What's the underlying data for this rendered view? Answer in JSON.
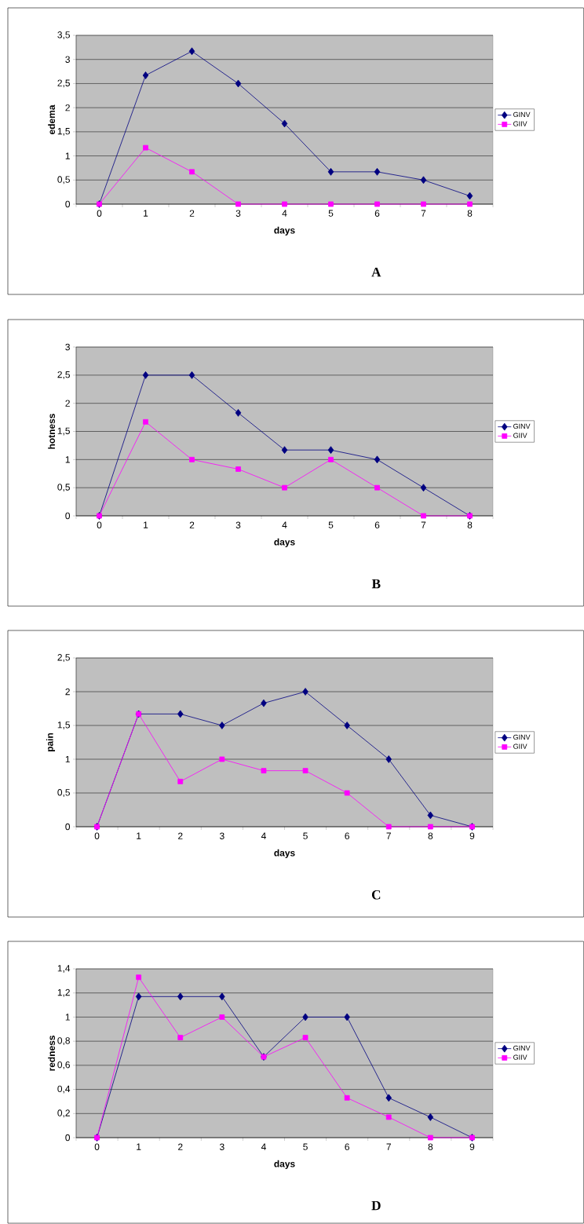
{
  "chart_data": [
    {
      "type": "line",
      "ylabel": "edema",
      "xlabel": "days",
      "annotations": [
        "A"
      ],
      "categories": [
        "0",
        "1",
        "2",
        "3",
        "4",
        "5",
        "6",
        "7",
        "8"
      ],
      "ylim": [
        0,
        3.5
      ],
      "yticks": [
        0,
        {
          "value": 0.5,
          "label": "0,5"
        },
        1,
        {
          "value": 1.5,
          "label": "1,5"
        },
        2,
        {
          "value": 2.5,
          "label": "2,5"
        },
        3,
        {
          "value": 3.5,
          "label": "3,5"
        }
      ],
      "grid": "y",
      "legend": "right",
      "series": [
        {
          "name": "GINV",
          "color": "#000080",
          "marker": "diamond",
          "values": [
            0,
            2.67,
            3.17,
            2.5,
            1.67,
            0.67,
            0.67,
            0.5,
            0.17
          ]
        },
        {
          "name": "GIIV",
          "color": "#ff00ff",
          "marker": "square",
          "values": [
            0,
            1.17,
            0.67,
            0,
            0,
            0,
            0,
            0,
            0
          ]
        }
      ]
    },
    {
      "type": "line",
      "ylabel": "hotness",
      "xlabel": "days",
      "annotations": [
        "B"
      ],
      "categories": [
        "0",
        "1",
        "2",
        "3",
        "4",
        "5",
        "6",
        "7",
        "8"
      ],
      "ylim": [
        0,
        3
      ],
      "yticks": [
        0,
        {
          "value": 0.5,
          "label": "0,5"
        },
        1,
        {
          "value": 1.5,
          "label": "1,5"
        },
        2,
        {
          "value": 2.5,
          "label": "2,5"
        },
        3
      ],
      "grid": "y",
      "legend": "right",
      "series": [
        {
          "name": "GINV",
          "color": "#000080",
          "marker": "diamond",
          "values": [
            0,
            2.5,
            2.5,
            1.83,
            1.17,
            1.17,
            1.0,
            0.5,
            0
          ]
        },
        {
          "name": "GIIV",
          "color": "#ff00ff",
          "marker": "square",
          "values": [
            0,
            1.67,
            1.0,
            0.83,
            0.5,
            1.0,
            0.5,
            0,
            0
          ]
        }
      ]
    },
    {
      "type": "line",
      "ylabel": "pain",
      "xlabel": "days",
      "annotations": [
        "C"
      ],
      "categories": [
        "0",
        "1",
        "2",
        "3",
        "4",
        "5",
        "6",
        "7",
        "8",
        "9"
      ],
      "ylim": [
        0,
        2.5
      ],
      "yticks": [
        0,
        {
          "value": 0.5,
          "label": "0,5"
        },
        1,
        {
          "value": 1.5,
          "label": "1,5"
        },
        2,
        {
          "value": 2.5,
          "label": "2,5"
        }
      ],
      "grid": "y",
      "legend": "right",
      "series": [
        {
          "name": "GINV",
          "color": "#000080",
          "marker": "diamond",
          "values": [
            0,
            1.67,
            1.67,
            1.5,
            1.83,
            2.0,
            1.5,
            1.0,
            0.17,
            0
          ]
        },
        {
          "name": "GIIV",
          "color": "#ff00ff",
          "marker": "square",
          "values": [
            0,
            1.67,
            0.67,
            1.0,
            0.83,
            0.83,
            0.5,
            0,
            0,
            0
          ]
        }
      ]
    },
    {
      "type": "line",
      "ylabel": "redness",
      "xlabel": "days",
      "annotations": [
        "D"
      ],
      "categories": [
        "0",
        "1",
        "2",
        "3",
        "4",
        "5",
        "6",
        "7",
        "8",
        "9"
      ],
      "ylim": [
        0,
        1.4
      ],
      "yticks": [
        0,
        {
          "value": 0.2,
          "label": "0,2"
        },
        {
          "value": 0.4,
          "label": "0,4"
        },
        {
          "value": 0.6,
          "label": "0,6"
        },
        {
          "value": 0.8,
          "label": "0,8"
        },
        1,
        {
          "value": 1.2,
          "label": "1,2"
        },
        {
          "value": 1.4,
          "label": "1,4"
        }
      ],
      "grid": "y",
      "legend": "right",
      "series": [
        {
          "name": "GINV",
          "color": "#000080",
          "marker": "diamond",
          "values": [
            0,
            1.17,
            1.17,
            1.17,
            0.67,
            1.0,
            1.0,
            0.33,
            0.17,
            0
          ]
        },
        {
          "name": "GIIV",
          "color": "#ff00ff",
          "marker": "square",
          "values": [
            0,
            1.33,
            0.83,
            1.0,
            0.67,
            0.83,
            0.33,
            0.17,
            0,
            0
          ]
        }
      ]
    }
  ]
}
